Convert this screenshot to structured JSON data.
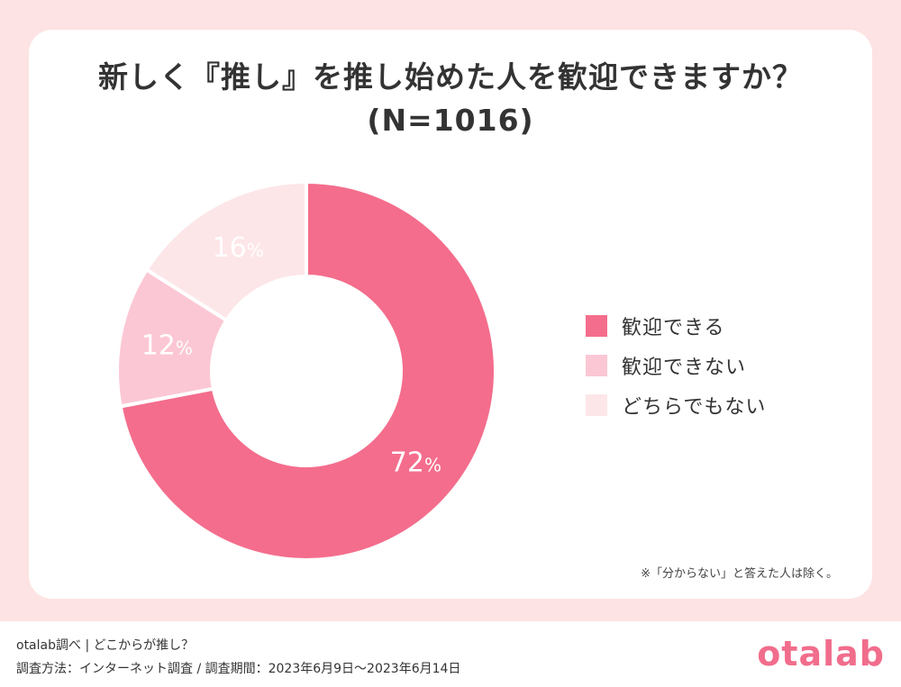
{
  "chart_data": {
    "type": "pie",
    "title": "新しく『推し』を推し始めた人を歓迎できますか？",
    "subtitle": "(N=1016)",
    "unit": "%",
    "categories": [
      "歓迎できる",
      "歓迎できない",
      "どちらでもない"
    ],
    "values": [
      72,
      12,
      16
    ],
    "colors": [
      "#f46d8c",
      "#fcc7d4",
      "#fde6e8"
    ],
    "label_colors": [
      "#ffffff",
      "#ffffff",
      "#bfa3a6"
    ],
    "legend_position": "right",
    "donut": true
  },
  "note": "※「分からない」と答えた人は除く。",
  "footer": {
    "source": "otalab調べ | どこからが推し？",
    "method": "調査方法：インターネット調査 / 調査期間：2023年6月9日〜2023年6月14日",
    "logo": "otalab"
  },
  "colors": {
    "background": "#fde3e3",
    "card": "#ffffff",
    "brand": "#f16d8c"
  }
}
